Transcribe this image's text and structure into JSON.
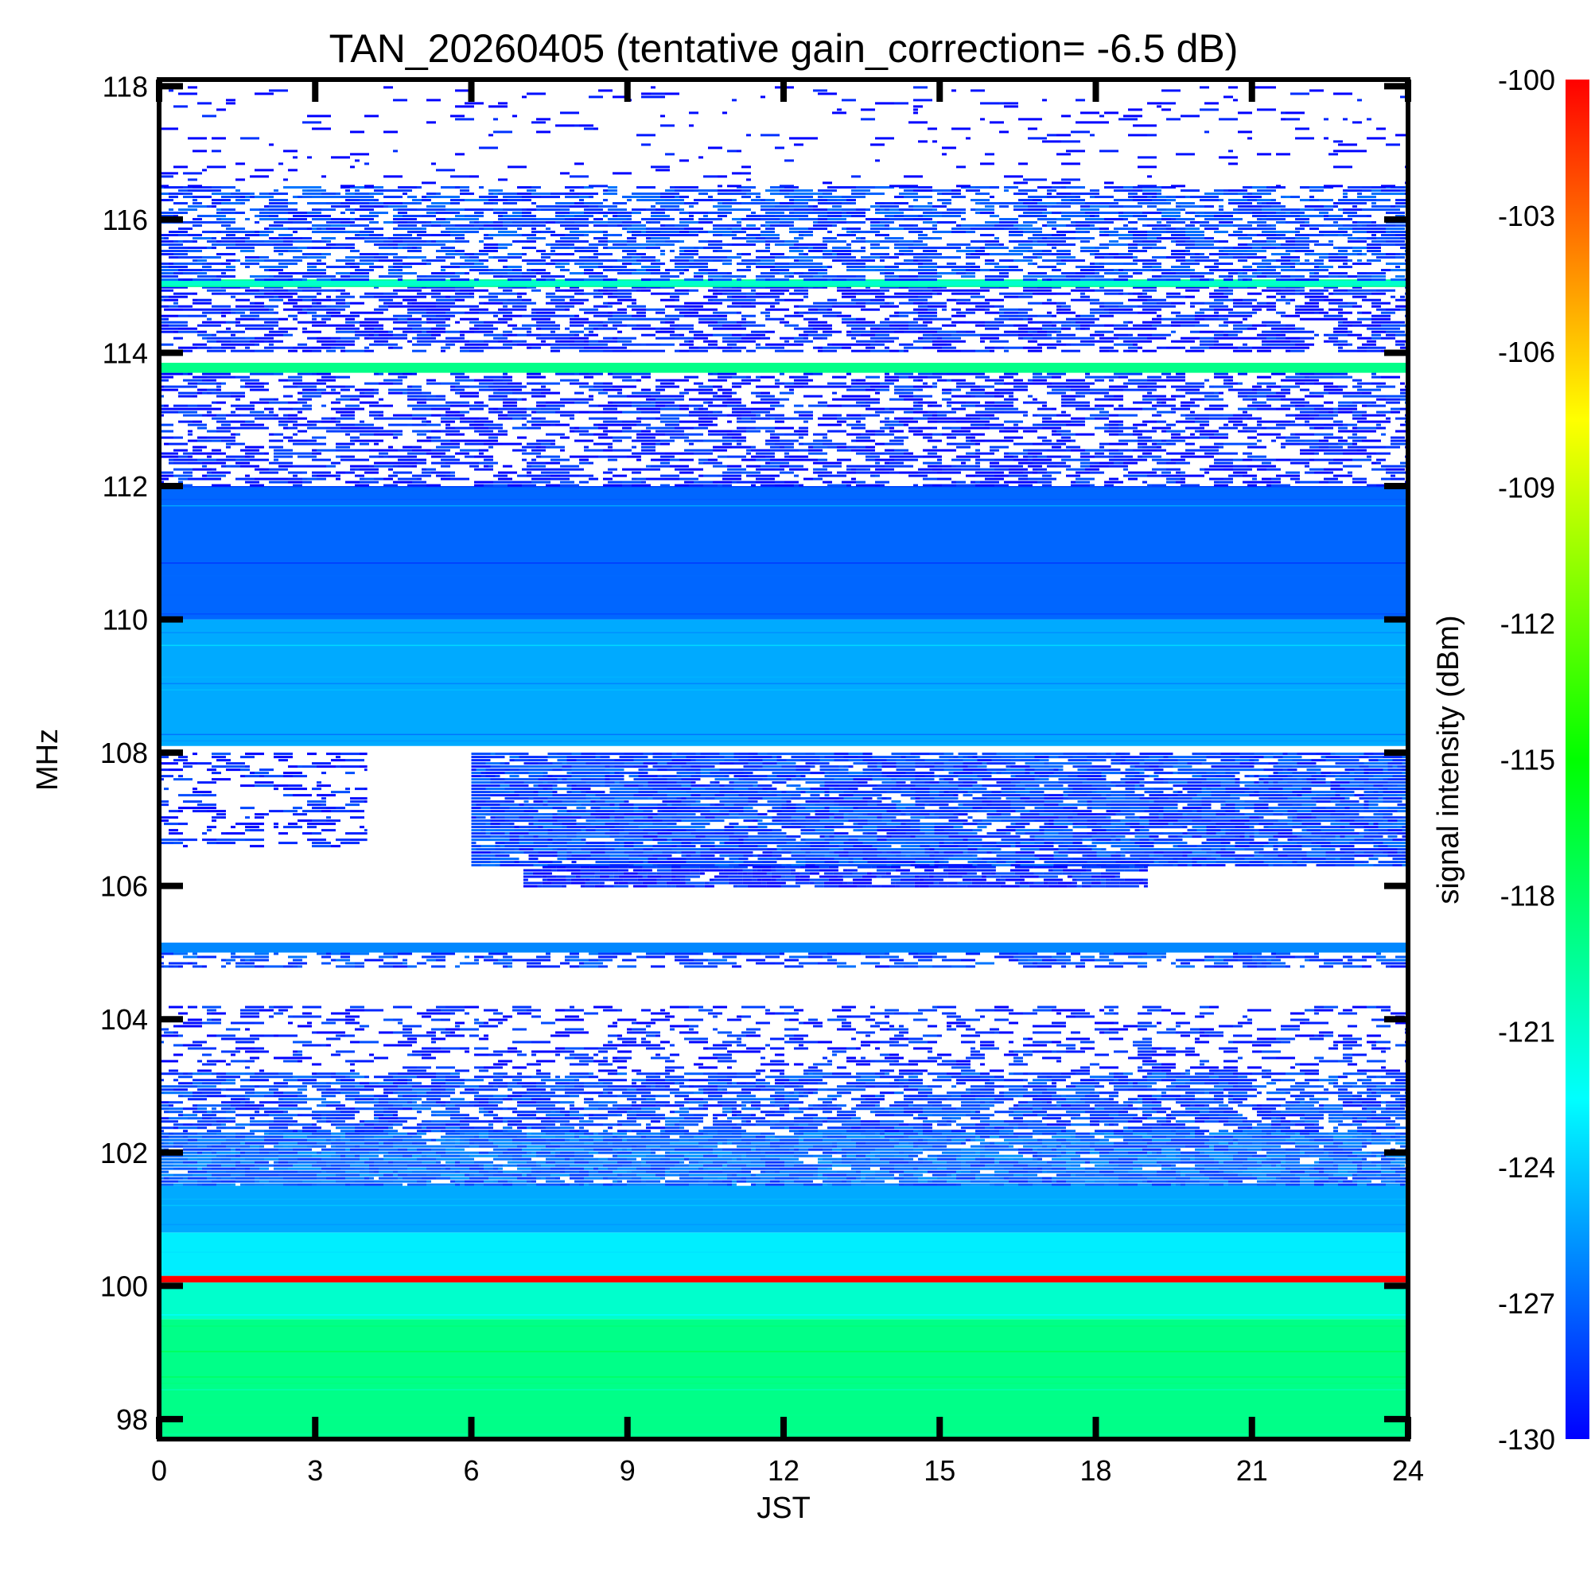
{
  "chart_data": {
    "type": "heatmap",
    "title": "TAN_20260405 (tentative gain_correction= -6.5 dB)",
    "xlabel": "JST",
    "ylabel": "MHz",
    "colorbar_label": "signal intensity (dBm)",
    "xlim": [
      0,
      24
    ],
    "ylim": [
      97.7,
      118.1
    ],
    "x_ticks": [
      0,
      3,
      6,
      9,
      12,
      15,
      18,
      21,
      24
    ],
    "x_tick_labels": [
      "0",
      "3",
      "6",
      "9",
      "12",
      "15",
      "18",
      "21",
      "24"
    ],
    "y_ticks": [
      98,
      100,
      102,
      104,
      106,
      108,
      110,
      112,
      114,
      116,
      118
    ],
    "y_tick_labels": [
      "98",
      "100",
      "102",
      "104",
      "106",
      "108",
      "110",
      "112",
      "114",
      "116",
      "118"
    ],
    "color_range": [
      -130,
      -100
    ],
    "colorbar_ticks": [
      -100,
      -103,
      -106,
      -109,
      -112,
      -115,
      -118,
      -121,
      -124,
      -127,
      -130
    ],
    "colorbar_tick_labels": [
      "-100",
      "-103",
      "-106",
      "-109",
      "-112",
      "-115",
      "-118",
      "-121",
      "-124",
      "-127",
      "-130"
    ],
    "colormap": [
      "#0000ff",
      "#0080ff",
      "#00ffff",
      "#00ff80",
      "#00ff00",
      "#80ff00",
      "#ffff00",
      "#ff8000",
      "#ff0000"
    ],
    "background_color": "#ffffff",
    "intensity_bands": [
      {
        "freq_range": [
          97.7,
          99.5
        ],
        "time_range": [
          0,
          24
        ],
        "level_dbm": -119,
        "coverage": 1.0
      },
      {
        "freq_range": [
          99.5,
          100.05
        ],
        "time_range": [
          0,
          24
        ],
        "level_dbm": -121,
        "coverage": 1.0
      },
      {
        "freq_range": [
          100.05,
          100.15
        ],
        "time_range": [
          0,
          24
        ],
        "level_dbm": -100,
        "coverage": 1.0
      },
      {
        "freq_range": [
          100.15,
          100.8
        ],
        "time_range": [
          0,
          24
        ],
        "level_dbm": -123,
        "coverage": 1.0
      },
      {
        "freq_range": [
          100.8,
          101.5
        ],
        "time_range": [
          0,
          24
        ],
        "level_dbm": -125,
        "coverage": 1.0
      },
      {
        "freq_range": [
          101.5,
          102.3
        ],
        "time_range": [
          0,
          24
        ],
        "level_dbm": -127,
        "coverage": 0.95
      },
      {
        "freq_range": [
          102.3,
          103.2
        ],
        "time_range": [
          0,
          24
        ],
        "level_dbm": -128,
        "coverage": 0.75
      },
      {
        "freq_range": [
          103.2,
          104.2
        ],
        "time_range": [
          0,
          24
        ],
        "level_dbm": -129,
        "coverage": 0.3
      },
      {
        "freq_range": [
          104.8,
          105.0
        ],
        "time_range": [
          0,
          24
        ],
        "level_dbm": -128,
        "coverage": 0.5
      },
      {
        "freq_range": [
          105.0,
          105.15
        ],
        "time_range": [
          0,
          24
        ],
        "level_dbm": -126,
        "coverage": 1.0
      },
      {
        "freq_range": [
          106.3,
          108.0
        ],
        "time_range": [
          6,
          24
        ],
        "level_dbm": -128,
        "coverage": 0.9
      },
      {
        "freq_range": [
          106.0,
          106.3
        ],
        "time_range": [
          7,
          19
        ],
        "level_dbm": -129,
        "coverage": 0.85
      },
      {
        "freq_range": [
          106.6,
          108.0
        ],
        "time_range": [
          0,
          4
        ],
        "level_dbm": -129,
        "coverage": 0.3
      },
      {
        "freq_range": [
          108.1,
          110.0
        ],
        "time_range": [
          0,
          24
        ],
        "level_dbm": -125,
        "coverage": 1.0
      },
      {
        "freq_range": [
          110.0,
          112.0
        ],
        "time_range": [
          0,
          24
        ],
        "level_dbm": -127,
        "coverage": 1.0
      },
      {
        "freq_range": [
          112.0,
          113.7
        ],
        "time_range": [
          0,
          24
        ],
        "level_dbm": -129,
        "coverage": 0.55
      },
      {
        "freq_range": [
          113.7,
          113.85
        ],
        "time_range": [
          0,
          24
        ],
        "level_dbm": -119,
        "coverage": 1.0
      },
      {
        "freq_range": [
          114.0,
          115.0
        ],
        "time_range": [
          0,
          24
        ],
        "level_dbm": -129,
        "coverage": 0.6
      },
      {
        "freq_range": [
          115.0,
          115.1
        ],
        "time_range": [
          0,
          24
        ],
        "level_dbm": -121,
        "coverage": 1.0
      },
      {
        "freq_range": [
          115.1,
          116.5
        ],
        "time_range": [
          0,
          24
        ],
        "level_dbm": -128,
        "coverage": 0.65
      },
      {
        "freq_range": [
          116.5,
          118.0
        ],
        "time_range": [
          0,
          24
        ],
        "level_dbm": -130,
        "coverage": 0.08
      }
    ]
  }
}
